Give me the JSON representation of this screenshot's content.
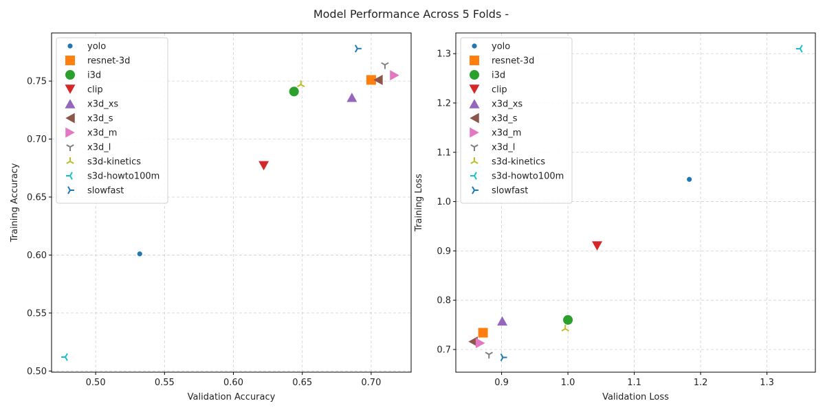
{
  "suptitle": "Model Performance Across 5 Folds -",
  "colors": {
    "yolo": "#1f77b4",
    "resnet-3d": "#ff7f0e",
    "i3d": "#2ca02c",
    "clip": "#d62728",
    "x3d_xs": "#9467bd",
    "x3d_s": "#8c564b",
    "x3d_m": "#e377c2",
    "x3d_l": "#7f7f7f",
    "s3d-kinetics": "#bcbd22",
    "s3d-howto100m": "#17becf",
    "slowfast": "#1f77b4"
  },
  "markers": {
    "yolo": "circle-small",
    "resnet-3d": "square",
    "i3d": "circle",
    "clip": "triangle-down",
    "x3d_xs": "triangle-up",
    "x3d_s": "triangle-left",
    "x3d_m": "triangle-right",
    "x3d_l": "tri-down",
    "s3d-kinetics": "tri-up",
    "s3d-howto100m": "tri-left",
    "slowfast": "tri-right"
  },
  "chart_data": [
    {
      "type": "scatter",
      "title": "",
      "xlabel": "Validation Accuracy",
      "ylabel": "Training Accuracy",
      "xlim": [
        0.468,
        0.729
      ],
      "ylim": [
        0.499,
        0.7915
      ],
      "xticks": [
        0.5,
        0.55,
        0.6,
        0.65,
        0.7
      ],
      "xtick_labels": [
        "0.50",
        "0.55",
        "0.60",
        "0.65",
        "0.70"
      ],
      "yticks": [
        0.5,
        0.55,
        0.6,
        0.65,
        0.7,
        0.75
      ],
      "ytick_labels": [
        "0.50",
        "0.55",
        "0.60",
        "0.65",
        "0.70",
        "0.75"
      ],
      "grid": true,
      "legend_position": "upper-left",
      "series": [
        {
          "name": "yolo",
          "x": 0.532,
          "y": 0.601
        },
        {
          "name": "resnet-3d",
          "x": 0.7,
          "y": 0.751
        },
        {
          "name": "i3d",
          "x": 0.644,
          "y": 0.741
        },
        {
          "name": "clip",
          "x": 0.622,
          "y": 0.677
        },
        {
          "name": "x3d_xs",
          "x": 0.686,
          "y": 0.736
        },
        {
          "name": "x3d_s",
          "x": 0.705,
          "y": 0.751
        },
        {
          "name": "x3d_m",
          "x": 0.717,
          "y": 0.755
        },
        {
          "name": "x3d_l",
          "x": 0.71,
          "y": 0.764
        },
        {
          "name": "s3d-kinetics",
          "x": 0.649,
          "y": 0.747
        },
        {
          "name": "s3d-howto100m",
          "x": 0.478,
          "y": 0.512
        },
        {
          "name": "slowfast",
          "x": 0.69,
          "y": 0.778
        }
      ]
    },
    {
      "type": "scatter",
      "title": "",
      "xlabel": "Validation Loss",
      "ylabel": "Training Loss",
      "xlim": [
        0.831,
        1.373
      ],
      "ylim": [
        0.654,
        1.342
      ],
      "xticks": [
        0.9,
        1.0,
        1.1,
        1.2,
        1.3
      ],
      "xtick_labels": [
        "0.9",
        "1.0",
        "1.1",
        "1.2",
        "1.3"
      ],
      "yticks": [
        0.7,
        0.8,
        0.9,
        1.0,
        1.1,
        1.2,
        1.3
      ],
      "ytick_labels": [
        "0.7",
        "0.8",
        "0.9",
        "1.0",
        "1.1",
        "1.2",
        "1.3"
      ],
      "grid": true,
      "legend_position": "upper-left",
      "series": [
        {
          "name": "yolo",
          "x": 1.183,
          "y": 1.045
        },
        {
          "name": "resnet-3d",
          "x": 0.872,
          "y": 0.734
        },
        {
          "name": "i3d",
          "x": 1.0,
          "y": 0.76
        },
        {
          "name": "clip",
          "x": 1.044,
          "y": 0.91
        },
        {
          "name": "x3d_xs",
          "x": 0.901,
          "y": 0.758
        },
        {
          "name": "x3d_s",
          "x": 0.857,
          "y": 0.716
        },
        {
          "name": "x3d_m",
          "x": 0.868,
          "y": 0.713
        },
        {
          "name": "x3d_l",
          "x": 0.881,
          "y": 0.69
        },
        {
          "name": "s3d-kinetics",
          "x": 0.996,
          "y": 0.742
        },
        {
          "name": "s3d-howto100m",
          "x": 1.35,
          "y": 1.31
        },
        {
          "name": "slowfast",
          "x": 0.902,
          "y": 0.684
        }
      ]
    }
  ]
}
